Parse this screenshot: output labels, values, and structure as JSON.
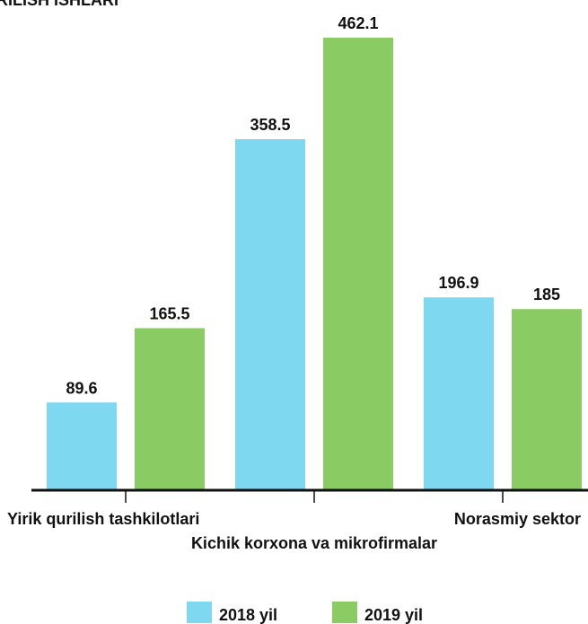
{
  "chart_data": {
    "type": "bar",
    "title": "RILISH ISHLARI",
    "categories": [
      "Yirik qurilish tashkilotlari",
      "Kichik korxona va mikrofirmalar",
      "Norasmiy sektor"
    ],
    "series": [
      {
        "name": "2018 yil",
        "color": "#7dd8f0",
        "values": [
          89.6,
          358.5,
          196.9
        ]
      },
      {
        "name": "2019 yil",
        "color": "#8bcb63",
        "values": [
          165.5,
          462.1,
          185
        ]
      }
    ],
    "legend": "bottom"
  }
}
